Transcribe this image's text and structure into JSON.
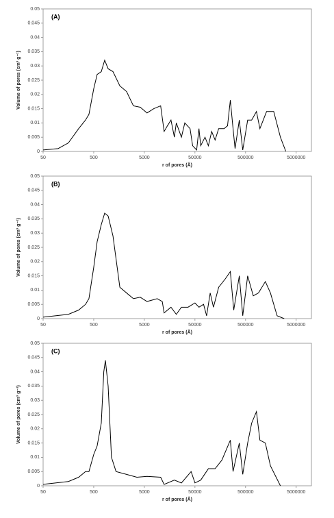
{
  "chart_data": [
    {
      "type": "line",
      "title": "(A)",
      "xlabel": "r of pores (Å)",
      "ylabel": "Volume of pores (cm³ g⁻¹)",
      "log_x": true,
      "color": "#000000",
      "xlim": [
        50,
        10000000
      ],
      "ylim": [
        0,
        0.05
      ],
      "xticks": [
        50,
        500,
        5000,
        50000,
        500000,
        5000000
      ],
      "yticks": [
        0,
        0.005,
        0.01,
        0.015,
        0.02,
        0.025,
        0.03,
        0.035,
        0.04,
        0.045,
        0.05
      ],
      "x": [
        50,
        99,
        158,
        252,
        344,
        402,
        500,
        584,
        705,
        823,
        963,
        1200,
        1640,
        2230,
        3040,
        4150,
        5650,
        7700,
        10500,
        12300,
        14300,
        16800,
        19600,
        21400,
        27000,
        31500,
        40000,
        45000,
        54000,
        60000,
        65000,
        79000,
        92000,
        107000,
        125000,
        147000,
        188000,
        220000,
        250000,
        283000,
        310000,
        376000,
        440000,
        550000,
        660000,
        820000,
        960000,
        1300000,
        1800000,
        2440000,
        3120000
      ],
      "values": [
        0.0005,
        0.001,
        0.003,
        0.008,
        0.011,
        0.013,
        0.022,
        0.027,
        0.028,
        0.032,
        0.029,
        0.028,
        0.023,
        0.021,
        0.016,
        0.0155,
        0.0135,
        0.015,
        0.016,
        0.007,
        0.009,
        0.011,
        0.005,
        0.01,
        0.005,
        0.01,
        0.008,
        0.002,
        0.0005,
        0.008,
        0.002,
        0.005,
        0.002,
        0.007,
        0.004,
        0.008,
        0.008,
        0.009,
        0.018,
        0.008,
        0.001,
        0.011,
        0.0005,
        0.011,
        0.011,
        0.014,
        0.008,
        0.014,
        0.014,
        0.005,
        0
      ]
    },
    {
      "type": "line",
      "title": "(B)",
      "xlabel": "r of pores (Å)",
      "ylabel": "Volume of pores (cm³ g⁻¹)",
      "log_x": true,
      "color": "#000000",
      "xlim": [
        50,
        10000000
      ],
      "ylim": [
        0,
        0.05
      ],
      "xticks": [
        50,
        500,
        5000,
        50000,
        500000,
        5000000
      ],
      "yticks": [
        0,
        0.005,
        0.01,
        0.015,
        0.02,
        0.025,
        0.03,
        0.035,
        0.04,
        0.045,
        0.05
      ],
      "x": [
        50,
        158,
        252,
        344,
        402,
        500,
        584,
        705,
        823,
        963,
        1200,
        1640,
        2230,
        3040,
        4150,
        5650,
        8980,
        11300,
        12300,
        16800,
        21400,
        27000,
        36500,
        50000,
        60000,
        74000,
        85000,
        100000,
        116000,
        147000,
        200000,
        250000,
        292000,
        376000,
        440000,
        550000,
        710000,
        900000,
        1230000,
        1550000,
        2100000,
        2900000
      ],
      "values": [
        0.0005,
        0.0015,
        0.003,
        0.005,
        0.007,
        0.018,
        0.027,
        0.033,
        0.037,
        0.036,
        0.029,
        0.011,
        0.009,
        0.007,
        0.0075,
        0.006,
        0.007,
        0.006,
        0.002,
        0.004,
        0.0015,
        0.004,
        0.004,
        0.0055,
        0.004,
        0.005,
        0.001,
        0.009,
        0.004,
        0.011,
        0.014,
        0.0165,
        0.003,
        0.015,
        0.001,
        0.015,
        0.008,
        0.009,
        0.013,
        0.009,
        0.001,
        0
      ]
    },
    {
      "type": "line",
      "title": "(C)",
      "xlabel": "r of pores (Å)",
      "ylabel": "Volume of pores (cm³ g⁻¹)",
      "log_x": true,
      "color": "#000000",
      "xlim": [
        50,
        10000000
      ],
      "ylim": [
        0,
        0.05
      ],
      "xticks": [
        50,
        500,
        5000,
        50000,
        500000,
        5000000
      ],
      "yticks": [
        0,
        0.005,
        0.01,
        0.015,
        0.02,
        0.025,
        0.03,
        0.035,
        0.04,
        0.045,
        0.05
      ],
      "x": [
        50,
        158,
        252,
        344,
        402,
        500,
        584,
        705,
        790,
        850,
        963,
        1120,
        1380,
        2230,
        3560,
        5650,
        10500,
        12300,
        19600,
        27000,
        42000,
        50000,
        65000,
        92000,
        125000,
        170000,
        250000,
        283000,
        376000,
        440000,
        550000,
        660000,
        820000,
        960000,
        1230000,
        1550000,
        2440000
      ],
      "values": [
        0.0005,
        0.0015,
        0.003,
        0.005,
        0.005,
        0.011,
        0.014,
        0.022,
        0.04,
        0.044,
        0.035,
        0.01,
        0.005,
        0.004,
        0.003,
        0.0033,
        0.003,
        0.0005,
        0.002,
        0.001,
        0.005,
        0.001,
        0.002,
        0.006,
        0.006,
        0.009,
        0.016,
        0.005,
        0.015,
        0.004,
        0.015,
        0.022,
        0.026,
        0.016,
        0.015,
        0.007,
        0
      ]
    }
  ]
}
